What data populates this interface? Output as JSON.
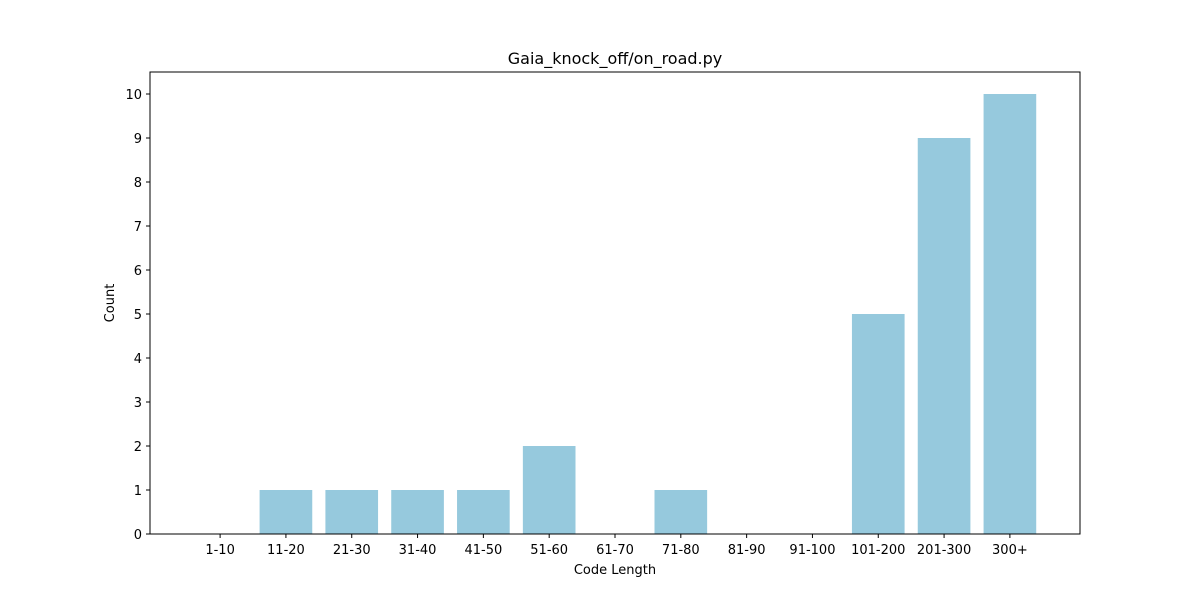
{
  "chart_data": {
    "type": "bar",
    "title": "Gaia_knock_off/on_road.py",
    "xlabel": "Code Length",
    "ylabel": "Count",
    "categories": [
      "1-10",
      "11-20",
      "21-30",
      "31-40",
      "41-50",
      "51-60",
      "61-70",
      "71-80",
      "81-90",
      "91-100",
      "101-200",
      "201-300",
      "300+"
    ],
    "values": [
      0,
      1,
      1,
      1,
      1,
      2,
      0,
      1,
      0,
      0,
      5,
      9,
      10
    ],
    "ylim": [
      0,
      10.5
    ],
    "yticks": [
      0,
      1,
      2,
      3,
      4,
      5,
      6,
      7,
      8,
      9,
      10
    ],
    "bar_color": "#96c9dd",
    "grid": false,
    "legend": "none"
  }
}
